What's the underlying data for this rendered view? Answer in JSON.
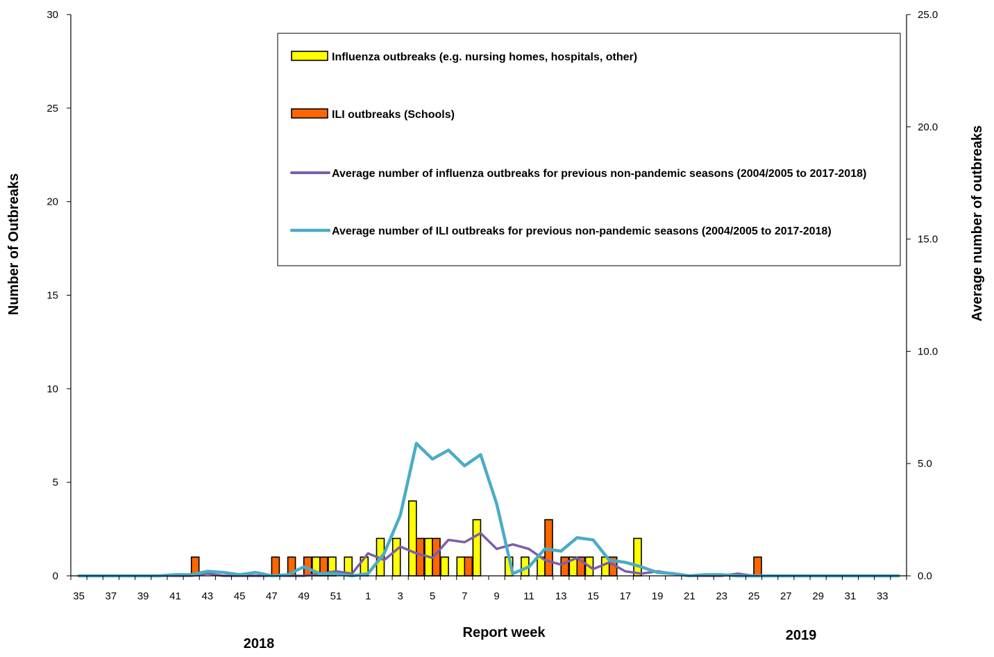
{
  "chart_data": {
    "type": "bar",
    "title": "",
    "xlabel": "Report week",
    "ylabel_left": "Number of Outbreaks",
    "ylabel_right": "Average number of outbreaks",
    "ylim_left": [
      0,
      30
    ],
    "ylim_right": [
      0,
      25
    ],
    "yticks_left": [
      "0",
      "5",
      "10",
      "15",
      "20",
      "25",
      "30"
    ],
    "yticks_right": [
      "0.0",
      "5.0",
      "10.0",
      "15.0",
      "20.0",
      "25.0"
    ],
    "x_tick_labels": [
      "35",
      "37",
      "39",
      "41",
      "43",
      "45",
      "47",
      "49",
      "51",
      "1",
      "3",
      "5",
      "7",
      "9",
      "11",
      "13",
      "15",
      "17",
      "19",
      "21",
      "23",
      "25",
      "27",
      "29",
      "31",
      "33"
    ],
    "year_labels": [
      "2018",
      "2019"
    ],
    "weeks": [
      35,
      36,
      37,
      38,
      39,
      40,
      41,
      42,
      43,
      44,
      45,
      46,
      47,
      48,
      49,
      50,
      51,
      52,
      1,
      2,
      3,
      4,
      5,
      6,
      7,
      8,
      9,
      10,
      11,
      12,
      13,
      14,
      15,
      16,
      17,
      18,
      19,
      20,
      21,
      22,
      23,
      24,
      25,
      26,
      27,
      28,
      29,
      30,
      31,
      32,
      33,
      34
    ],
    "legend_position": "top-right",
    "grid": false,
    "series": [
      {
        "name": "Influenza outbreaks (e.g. nursing homes, hospitals, other)",
        "kind": "bar",
        "axis": "left",
        "color": "#ffff00",
        "values": [
          0,
          0,
          0,
          0,
          0,
          0,
          0,
          0,
          0,
          0,
          0,
          0,
          0,
          0,
          0,
          1,
          1,
          1,
          1,
          2,
          2,
          4,
          2,
          1,
          1,
          3,
          0,
          1,
          1,
          1,
          0,
          1,
          1,
          1,
          0,
          2,
          0,
          0,
          0,
          0,
          0,
          0,
          0,
          0,
          0,
          0,
          0,
          0,
          0,
          0,
          0,
          0
        ]
      },
      {
        "name": "ILI outbreaks (Schools)",
        "kind": "bar",
        "axis": "left",
        "color": "#ff6600",
        "values": [
          0,
          0,
          0,
          0,
          0,
          0,
          0,
          1,
          0,
          0,
          0,
          0,
          1,
          1,
          1,
          1,
          0,
          0,
          0,
          0,
          0,
          2,
          2,
          0,
          1,
          0,
          0,
          0,
          0,
          3,
          1,
          1,
          0,
          1,
          0,
          0,
          0,
          0,
          0,
          0,
          0,
          0,
          1,
          0,
          0,
          0,
          0,
          0,
          0,
          0,
          0,
          0
        ]
      },
      {
        "name": "Average number of influenza outbreaks for previous non-pandemic seasons (2004/2005 to 2017-2018)",
        "kind": "line",
        "axis": "right",
        "color": "#7b5ea7",
        "values": [
          0,
          0,
          0,
          0,
          0,
          0,
          0,
          0,
          0.1,
          0,
          0,
          0,
          0,
          0,
          0,
          0.1,
          0.2,
          0.1,
          1.0,
          0.7,
          1.3,
          1.0,
          0.8,
          1.6,
          1.5,
          1.9,
          1.2,
          1.4,
          1.2,
          0.7,
          0.5,
          0.8,
          0.3,
          0.6,
          0.2,
          0.1,
          0.2,
          0.1,
          0,
          0,
          0,
          0.1,
          0,
          0,
          0,
          0,
          0,
          0,
          0,
          0,
          0,
          0
        ]
      },
      {
        "name": "Average number of ILI outbreaks for previous non-pandemic seasons (2004/2005 to 2017-2018)",
        "kind": "line",
        "axis": "right",
        "color": "#4bacc6",
        "values": [
          0,
          0,
          0,
          0,
          0,
          0,
          0.05,
          0.05,
          0.2,
          0.15,
          0.05,
          0.15,
          0,
          0.05,
          0.4,
          0.1,
          0.1,
          0,
          0.1,
          1.0,
          2.7,
          5.9,
          5.2,
          5.6,
          4.9,
          5.4,
          3.2,
          0.1,
          0.4,
          1.2,
          1.1,
          1.7,
          1.6,
          0.7,
          0.6,
          0.4,
          0.15,
          0.1,
          0,
          0.05,
          0.05,
          0,
          0,
          0,
          0,
          0,
          0,
          0,
          0,
          0,
          0,
          0
        ]
      }
    ]
  }
}
